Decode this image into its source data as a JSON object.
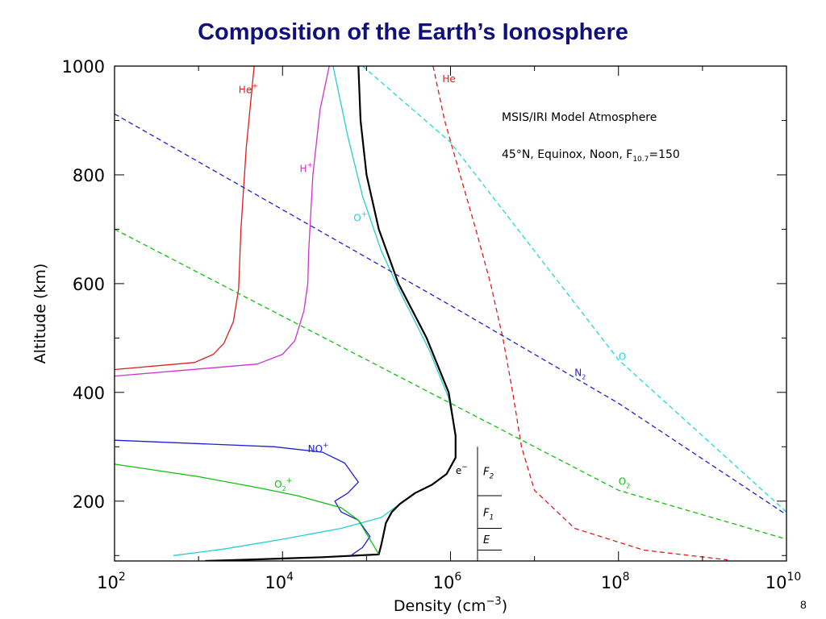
{
  "slide": {
    "title": "Composition of the Earth’s Ionosphere",
    "page_number": "8"
  },
  "chart_data": {
    "type": "line",
    "title": "",
    "xlabel": "Density (cm",
    "xlabel_sup": "−3",
    "xlabel_close": ")",
    "ylabel": "Altitude (km)",
    "x_scale": "log",
    "xlim": [
      100,
      10000000000
    ],
    "ylim": [
      90,
      1000
    ],
    "grid": false,
    "x_ticks": [
      {
        "value": 100,
        "base": "10",
        "exp": "2"
      },
      {
        "value": 10000,
        "base": "10",
        "exp": "4"
      },
      {
        "value": 1000000,
        "base": "10",
        "exp": "6"
      },
      {
        "value": 100000000,
        "base": "10",
        "exp": "8"
      },
      {
        "value": 10000000000,
        "base": "10",
        "exp": "10"
      }
    ],
    "y_ticks": [
      200,
      400,
      600,
      800,
      1000
    ],
    "annotations": {
      "model": "MSIS/IRI Model Atmosphere",
      "conditions_prefix": "45°N, Equinox, Noon, F",
      "conditions_sub": "10.7",
      "conditions_suffix": "=150"
    },
    "layers": [
      {
        "label": "F",
        "sub": "2",
        "y_top": 300,
        "y_bottom": 210
      },
      {
        "label": "F",
        "sub": "1",
        "y_top": 210,
        "y_bottom": 150
      },
      {
        "label": "E",
        "sub": "",
        "y_top": 150,
        "y_bottom": 110
      }
    ],
    "series": [
      {
        "name": "He",
        "sup": "+",
        "color": "#dd1c1c",
        "dash": false,
        "label": {
          "x": 3000,
          "y": 950
        },
        "points": [
          [
            100,
            442
          ],
          [
            900,
            455
          ],
          [
            1500,
            470
          ],
          [
            2000,
            490
          ],
          [
            2600,
            530
          ],
          [
            3000,
            590
          ],
          [
            3200,
            700
          ],
          [
            3700,
            850
          ],
          [
            4600,
            1000
          ]
        ]
      },
      {
        "name": "H",
        "sup": "+",
        "color": "#d030d0",
        "dash": false,
        "label": {
          "x": 16000,
          "y": 805
        },
        "points": [
          [
            100,
            430
          ],
          [
            5000,
            452
          ],
          [
            10000,
            470
          ],
          [
            14000,
            495
          ],
          [
            18000,
            550
          ],
          [
            20000,
            600
          ],
          [
            20500,
            660
          ],
          [
            23000,
            800
          ],
          [
            28000,
            920
          ],
          [
            36000,
            1000
          ]
        ]
      },
      {
        "name": "O",
        "sup": "+",
        "color": "#22d0d0",
        "dash": false,
        "label": {
          "x": 70000,
          "y": 715
        },
        "points": [
          [
            40000,
            1000
          ],
          [
            60000,
            870
          ],
          [
            90000,
            760
          ],
          [
            150000,
            660
          ],
          [
            260000,
            580
          ],
          [
            550000,
            480
          ],
          [
            950000,
            390
          ],
          [
            1150000,
            320
          ],
          [
            1150000,
            280
          ],
          [
            900000,
            250
          ],
          [
            600000,
            230
          ],
          [
            380000,
            215
          ],
          [
            250000,
            195
          ],
          [
            150000,
            170
          ],
          [
            50000,
            150
          ],
          [
            10000,
            130
          ],
          [
            2000,
            112
          ],
          [
            500,
            100
          ]
        ]
      },
      {
        "name": "e",
        "sup": "−",
        "color": "#000000",
        "dash": false,
        "width": 2.2,
        "label": {
          "x": 1150000,
          "y": 250
        },
        "points": [
          [
            80000,
            1000
          ],
          [
            85000,
            900
          ],
          [
            100000,
            800
          ],
          [
            140000,
            700
          ],
          [
            240000,
            600
          ],
          [
            520000,
            500
          ],
          [
            950000,
            400
          ],
          [
            1150000,
            320
          ],
          [
            1150000,
            280
          ],
          [
            900000,
            250
          ],
          [
            600000,
            230
          ],
          [
            380000,
            215
          ],
          [
            250000,
            195
          ],
          [
            200000,
            180
          ],
          [
            170000,
            160
          ],
          [
            160000,
            140
          ],
          [
            150000,
            120
          ],
          [
            140000,
            102
          ],
          [
            30000,
            97
          ],
          [
            5000,
            93
          ],
          [
            1200,
            90
          ]
        ]
      },
      {
        "name": "NO",
        "sup": "+",
        "color": "#2020d0",
        "dash": false,
        "label": {
          "x": 20000,
          "y": 290
        },
        "points": [
          [
            100,
            312
          ],
          [
            8000,
            300
          ],
          [
            30000,
            290
          ],
          [
            55000,
            270
          ],
          [
            80000,
            235
          ],
          [
            60000,
            215
          ],
          [
            42000,
            200
          ],
          [
            50000,
            180
          ],
          [
            80000,
            165
          ],
          [
            110000,
            135
          ],
          [
            90000,
            115
          ],
          [
            65000,
            100
          ]
        ]
      },
      {
        "name": "O",
        "sub": "2",
        "sup": "+",
        "color": "#10c010",
        "dash": false,
        "label": {
          "x": 8000,
          "y": 225
        },
        "points": [
          [
            100,
            268
          ],
          [
            1000,
            245
          ],
          [
            5000,
            225
          ],
          [
            15000,
            210
          ],
          [
            50000,
            188
          ],
          [
            80000,
            165
          ],
          [
            100000,
            140
          ],
          [
            120000,
            120
          ],
          [
            140000,
            102
          ]
        ]
      },
      {
        "name": "He",
        "color": "#dd1c1c",
        "dash": true,
        "label": {
          "x": 800000,
          "y": 970
        },
        "points": [
          [
            620000,
            1000
          ],
          [
            850000,
            900
          ],
          [
            1300000,
            800
          ],
          [
            2000000,
            700
          ],
          [
            3000000,
            600
          ],
          [
            4200000,
            500
          ],
          [
            5500000,
            400
          ],
          [
            7000000,
            300
          ],
          [
            10000000,
            220
          ],
          [
            30000000,
            150
          ],
          [
            200000000,
            110
          ],
          [
            2000000000,
            92
          ]
        ]
      },
      {
        "name": "N",
        "sub": "2",
        "color": "#2020d0",
        "dash": true,
        "label": {
          "x": 30000000,
          "y": 430
        },
        "points": [
          [
            100,
            912
          ],
          [
            1000000,
            560
          ],
          [
            100000000,
            380
          ],
          [
            10000000000,
            175
          ]
        ]
      },
      {
        "name": "O",
        "color": "#22d8d8",
        "dash": true,
        "label": {
          "x": 100000000,
          "y": 460
        },
        "points": [
          [
            90000,
            1000
          ],
          [
            1000000,
            860
          ],
          [
            100000000,
            460
          ],
          [
            1000000000,
            320
          ],
          [
            10000000000,
            180
          ]
        ]
      },
      {
        "name": "O",
        "sub": "2",
        "color": "#10c010",
        "dash": true,
        "label": {
          "x": 100000000,
          "y": 230
        },
        "points": [
          [
            100,
            700
          ],
          [
            1000000,
            380
          ],
          [
            100000000,
            220
          ],
          [
            10000000000,
            130
          ]
        ]
      }
    ]
  }
}
